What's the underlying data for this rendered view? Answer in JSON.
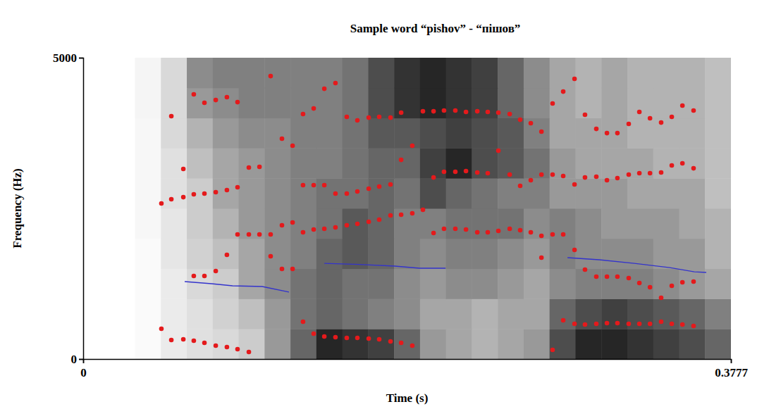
{
  "chart_data": {
    "type": "scatter",
    "title": "Sample word “pishov” - “пішов”",
    "x_label": "Time (s)",
    "y_label": "Frequency (Hz)",
    "xlim": [
      0,
      0.3777
    ],
    "ylim": [
      0,
      5000
    ],
    "xticks": [
      0,
      0.3777
    ],
    "yticks": [
      0,
      5000
    ],
    "grid": false,
    "cells": [
      [
        0,
        0,
        0.02,
        0.08,
        0.12,
        0.15,
        0.2,
        0.4,
        0.6,
        0.85,
        0.8,
        0.75,
        0.6,
        0.4,
        0.35,
        0.3,
        0.35,
        0.4,
        0.7,
        0.85,
        0.85,
        0.8,
        0.75,
        0.7,
        0.6
      ],
      [
        0,
        0,
        0.02,
        0.08,
        0.12,
        0.18,
        0.25,
        0.4,
        0.55,
        0.6,
        0.55,
        0.5,
        0.45,
        0.35,
        0.35,
        0.3,
        0.35,
        0.35,
        0.6,
        0.7,
        0.75,
        0.7,
        0.65,
        0.6,
        0.5
      ],
      [
        0,
        0,
        0.02,
        0.08,
        0.15,
        0.2,
        0.35,
        0.45,
        0.55,
        0.6,
        0.55,
        0.55,
        0.45,
        0.4,
        0.45,
        0.45,
        0.4,
        0.35,
        0.45,
        0.5,
        0.5,
        0.5,
        0.45,
        0.4,
        0.35
      ],
      [
        0,
        0,
        0.02,
        0.1,
        0.18,
        0.25,
        0.35,
        0.45,
        0.5,
        0.6,
        0.65,
        0.6,
        0.5,
        0.45,
        0.5,
        0.5,
        0.45,
        0.4,
        0.5,
        0.45,
        0.45,
        0.45,
        0.4,
        0.4,
        0.3
      ],
      [
        0,
        0,
        0.03,
        0.1,
        0.2,
        0.3,
        0.4,
        0.45,
        0.5,
        0.55,
        0.65,
        0.6,
        0.5,
        0.5,
        0.55,
        0.55,
        0.55,
        0.45,
        0.5,
        0.45,
        0.4,
        0.4,
        0.4,
        0.35,
        0.3
      ],
      [
        0,
        0,
        0.03,
        0.12,
        0.2,
        0.35,
        0.4,
        0.45,
        0.5,
        0.55,
        0.55,
        0.6,
        0.55,
        0.7,
        0.6,
        0.55,
        0.5,
        0.5,
        0.4,
        0.4,
        0.4,
        0.35,
        0.35,
        0.35,
        0.25
      ],
      [
        0,
        0,
        0.03,
        0.12,
        0.25,
        0.35,
        0.4,
        0.45,
        0.5,
        0.5,
        0.55,
        0.6,
        0.6,
        0.75,
        0.85,
        0.7,
        0.65,
        0.55,
        0.4,
        0.35,
        0.35,
        0.35,
        0.3,
        0.3,
        0.25
      ],
      [
        0,
        0,
        0.03,
        0.15,
        0.3,
        0.4,
        0.45,
        0.45,
        0.5,
        0.5,
        0.55,
        0.65,
        0.65,
        0.7,
        0.75,
        0.7,
        0.65,
        0.5,
        0.35,
        0.35,
        0.35,
        0.3,
        0.3,
        0.3,
        0.25
      ],
      [
        0,
        0,
        0.04,
        0.15,
        0.4,
        0.45,
        0.5,
        0.5,
        0.5,
        0.5,
        0.55,
        0.7,
        0.8,
        0.85,
        0.8,
        0.75,
        0.6,
        0.45,
        0.35,
        0.3,
        0.35,
        0.3,
        0.3,
        0.3,
        0.25
      ],
      [
        0,
        0,
        0.04,
        0.15,
        0.45,
        0.5,
        0.5,
        0.5,
        0.5,
        0.5,
        0.55,
        0.7,
        0.8,
        0.85,
        0.8,
        0.75,
        0.6,
        0.45,
        0.35,
        0.3,
        0.35,
        0.3,
        0.3,
        0.3,
        0.25
      ]
    ],
    "series": [
      {
        "type": "scatter",
        "color": "#e41a1c",
        "marker": "circle",
        "x": [
          0.0456,
          0.0514,
          0.0584,
          0.0645,
          0.0707,
          0.0773,
          0.0838,
          0.09,
          0.0966,
          0.0645,
          0.0707,
          0.0773,
          0.0838,
          0.09,
          0.0966,
          0.1028,
          0.1093,
          0.0456,
          0.0514,
          0.0584,
          0.0645,
          0.0707,
          0.0773,
          0.0838,
          0.09,
          0.0584,
          0.0966,
          0.1028,
          0.0514,
          0.0645,
          0.0707,
          0.0773,
          0.0838,
          0.09,
          0.1093,
          0.1159,
          0.1221,
          0.1159,
          0.1221,
          0.1093,
          0.1282,
          0.1344,
          0.1406,
          0.1471,
          0.1537,
          0.1599,
          0.1665,
          0.1726,
          0.1792,
          0.1854,
          0.1919,
          0.1159,
          0.1221,
          0.1282,
          0.1344,
          0.1406,
          0.1471,
          0.1537,
          0.1599,
          0.1665,
          0.1726,
          0.1792,
          0.1854,
          0.1919,
          0.1981,
          0.1282,
          0.1344,
          0.1406,
          0.1471,
          0.1537,
          0.1599,
          0.1665,
          0.1726,
          0.1792,
          0.1854,
          0.1919,
          0.1282,
          0.1344,
          0.1406,
          0.1471,
          0.1537,
          0.1599,
          0.1665,
          0.1726,
          0.1792,
          0.1854,
          0.2043,
          0.2104,
          0.217,
          0.2232,
          0.2298,
          0.2359,
          0.2421,
          0.2487,
          0.2548,
          0.261,
          0.2672,
          0.2737,
          0.2799,
          0.2043,
          0.2104,
          0.217,
          0.2232,
          0.2298,
          0.2359,
          0.2421,
          0.2487,
          0.2548,
          0.261,
          0.2672,
          0.2737,
          0.2799,
          0.1981,
          0.2043,
          0.2104,
          0.217,
          0.2232,
          0.2298,
          0.2359,
          0.2421,
          0.2487,
          0.2548,
          0.261,
          0.2672,
          0.2737,
          0.2799,
          0.2865,
          0.2672,
          0.2737,
          0.2799,
          0.2865,
          0.2926,
          0.2992,
          0.3054,
          0.3115,
          0.3181,
          0.3243,
          0.3305,
          0.337,
          0.3432,
          0.3494,
          0.3559,
          0.2865,
          0.2926,
          0.2992,
          0.3054,
          0.3115,
          0.3181,
          0.3243,
          0.3305,
          0.337,
          0.3432,
          0.3494,
          0.3559,
          0.2865,
          0.2926,
          0.2992,
          0.3054,
          0.3115,
          0.3181,
          0.3243,
          0.3305,
          0.337,
          0.3432,
          0.3494,
          0.3559,
          0.2926,
          0.2992,
          0.3054,
          0.3115,
          0.3181,
          0.3243,
          0.3305,
          0.337,
          0.3432,
          0.3494,
          0.3559
        ],
        "values": [
          502,
          315,
          327,
          304,
          269,
          222,
          199,
          164,
          117,
          1378,
          1378,
          1460,
          1729,
          2067,
          2067,
          2067,
          2067,
          2581,
          2651,
          2686,
          2733,
          2745,
          2768,
          2803,
          2850,
          3154,
          3177,
          3189,
          4030,
          4392,
          4252,
          4298,
          4345,
          4263,
          4695,
          3656,
          3539,
          1495,
          1495,
          1705,
          619,
          420,
          374,
          362,
          350,
          350,
          339,
          327,
          292,
          269,
          222,
          2219,
          2266,
          2102,
          2149,
          2161,
          2184,
          2219,
          2243,
          2278,
          2313,
          2383,
          2394,
          2418,
          2476,
          2885,
          2885,
          2885,
          2745,
          2745,
          2780,
          2827,
          2862,
          2897,
          3305,
          3539,
          4065,
          4158,
          4485,
          4579,
          4018,
          3960,
          4006,
          4018,
          4006,
          4088,
          2091,
          2161,
          2161,
          2149,
          2102,
          2102,
          2126,
          2161,
          2137,
          2102,
          2044,
          2067,
          2067,
          3013,
          3107,
          3107,
          3119,
          3095,
          3084,
          3457,
          3060,
          2873,
          2967,
          3060,
          3060,
          3037,
          4111,
          4111,
          4123,
          4123,
          4100,
          4111,
          4100,
          4088,
          4065,
          3971,
          3913,
          3773,
          4240,
          4438,
          4649,
          1682,
          152,
          642,
          584,
          572,
          584,
          596,
          596,
          584,
          584,
          584,
          619,
          584,
          572,
          549,
          1810,
          1483,
          1367,
          1367,
          1367,
          1343,
          1261,
          1191,
          1016,
          1215,
          1273,
          1285,
          2897,
          3013,
          3025,
          2967,
          3002,
          3060,
          3084,
          3084,
          3095,
          3212,
          3247,
          3165,
          4053,
          3819,
          3749,
          3749,
          3901,
          4100,
          3995,
          3924,
          4018,
          4205,
          4123
        ]
      },
      {
        "type": "line",
        "color": "#3333cc",
        "line_style": "solid",
        "x": [
          0.0592,
          0.0748,
          0.0871,
          0.1044,
          0.12
        ],
        "values": [
          1285,
          1250,
          1215,
          1203,
          1110
        ]
      },
      {
        "type": "line",
        "color": "#3333cc",
        "line_style": "solid",
        "x": [
          0.1406,
          0.1652,
          0.1817,
          0.1961,
          0.2113
        ],
        "values": [
          1588,
          1565,
          1542,
          1507,
          1507
        ]
      },
      {
        "type": "line",
        "color": "#3333cc",
        "line_style": "solid",
        "x": [
          0.2824,
          0.3009,
          0.3214,
          0.342,
          0.3564,
          0.3633
        ],
        "values": [
          1682,
          1647,
          1588,
          1518,
          1448,
          1437
        ]
      }
    ]
  }
}
